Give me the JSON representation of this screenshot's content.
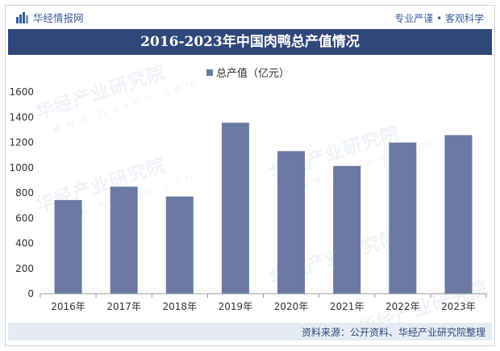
{
  "header": {
    "brand_name": "华经情报网",
    "tagline": "专业严谨 • 客观科学"
  },
  "watermark": {
    "text": "华经产业研究院",
    "sub": "www.huaon.com"
  },
  "colors": {
    "bar": "#6b7aa3",
    "title_bg": "#2f4879",
    "brand": "#3b5b9a"
  },
  "chart_data": {
    "type": "bar",
    "title": "2016-2023年中国肉鸭总产值情况",
    "categories": [
      "2016年",
      "2017年",
      "2018年",
      "2019年",
      "2020年",
      "2021年",
      "2022年",
      "2023年"
    ],
    "series": [
      {
        "name": "总产值（亿元）",
        "values": [
          743,
          849,
          771,
          1356,
          1131,
          1013,
          1199,
          1258
        ]
      }
    ],
    "xlabel": "",
    "ylabel": "",
    "ylim": [
      0,
      1600
    ],
    "yticks": [
      0,
      200,
      400,
      600,
      800,
      1000,
      1200,
      1400,
      1600
    ],
    "grid": false,
    "legend": "top-center"
  },
  "source": "资料来源：公开资料、华经产业研究院整理"
}
